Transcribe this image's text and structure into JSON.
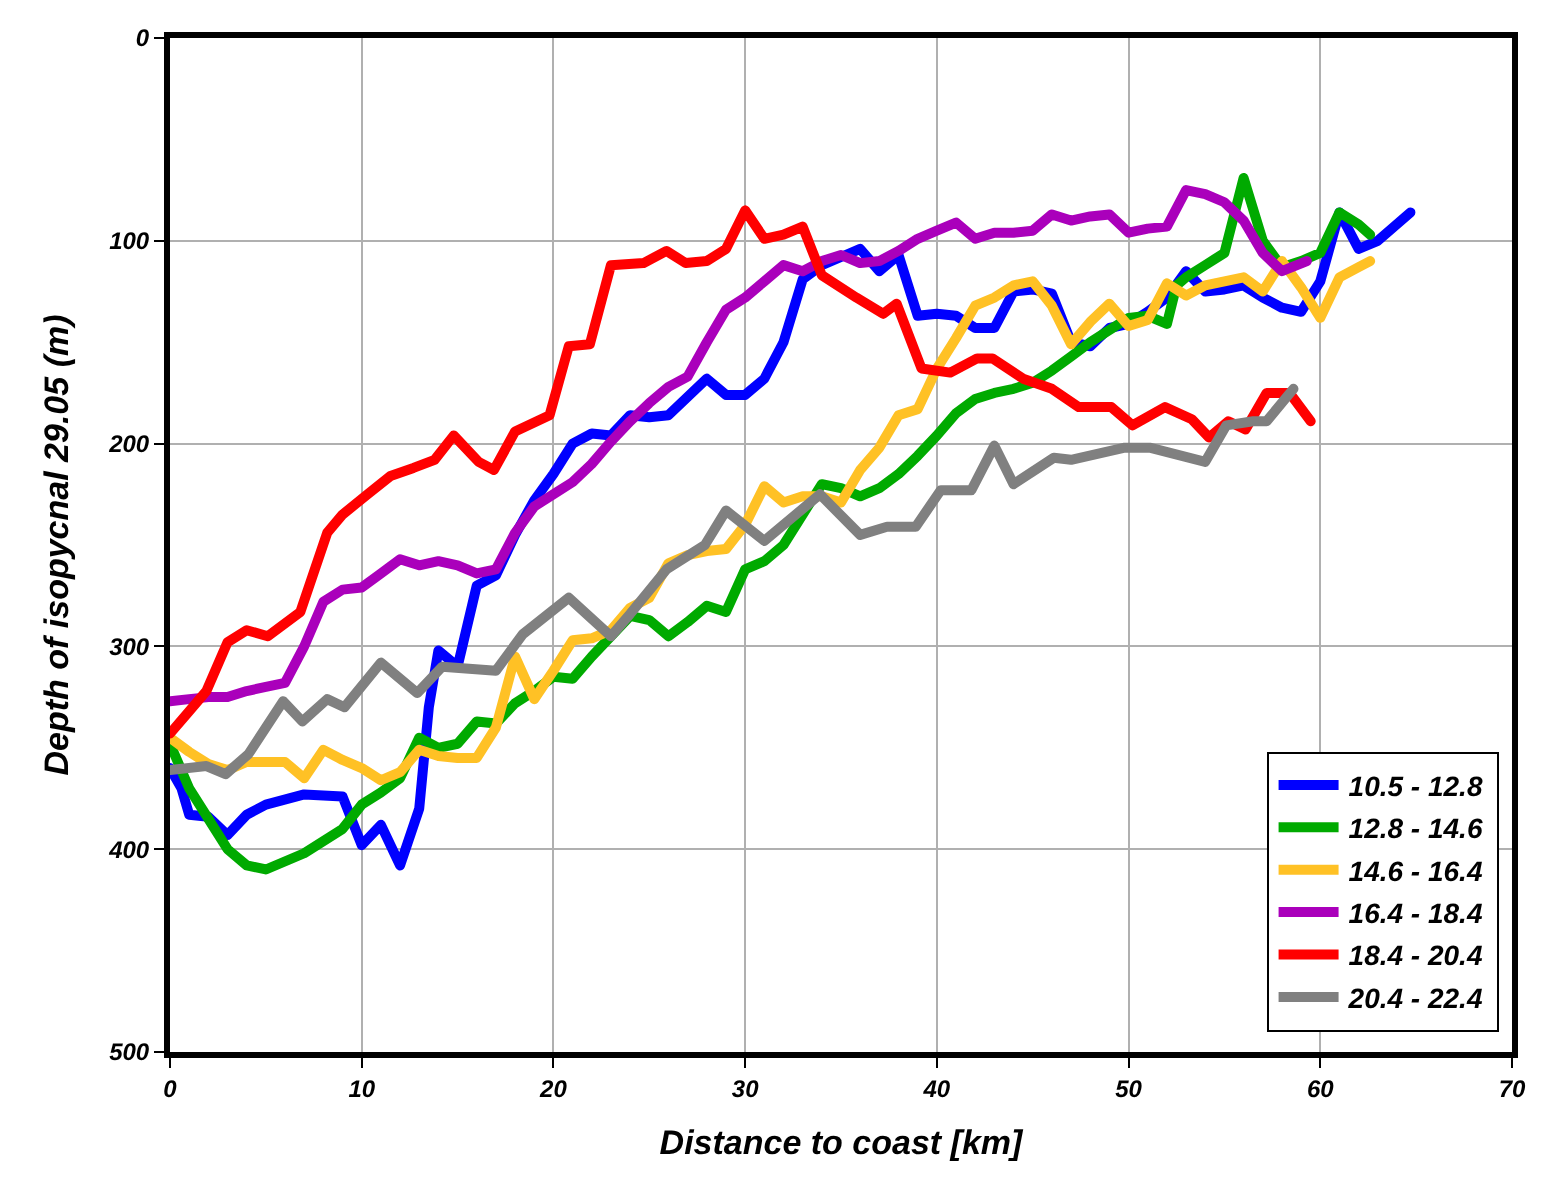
{
  "chart_data": {
    "type": "line",
    "xlabel": "Distance to coast [km]",
    "ylabel": "Depth of isopycnal 29.05 (m)",
    "xlim": [
      0,
      70
    ],
    "ylim": [
      500,
      0
    ],
    "xticks": [
      0,
      10,
      20,
      30,
      40,
      50,
      60,
      70
    ],
    "yticks": [
      0,
      100,
      200,
      300,
      400,
      500
    ],
    "grid": true,
    "legend": "bottom right",
    "marker": "none",
    "line_style": "solid",
    "series": [
      {
        "name": "10.5 - 12.8",
        "color": "#0000ff",
        "x": [
          0,
          0.6,
          1,
          2,
          3,
          4,
          5,
          7,
          9,
          10,
          11,
          12,
          13,
          13.5,
          14,
          15,
          16,
          17,
          18,
          19,
          20,
          21,
          22,
          23,
          24,
          25,
          26,
          27,
          28,
          29,
          30,
          31,
          32,
          33,
          34,
          35,
          36,
          37,
          38,
          39,
          40,
          41,
          42,
          43,
          44,
          45,
          46,
          47,
          48,
          49,
          50,
          51,
          52,
          53,
          54,
          55,
          56,
          57,
          58,
          59,
          60,
          61,
          62,
          63,
          64.7
        ],
        "values": [
          360,
          370,
          383,
          384,
          393,
          383,
          378,
          373,
          374,
          398,
          388,
          408,
          380,
          330,
          302,
          310,
          270,
          265,
          245,
          228,
          215,
          200,
          195,
          196,
          186,
          187,
          186,
          177,
          168,
          176,
          176,
          168,
          150,
          119,
          112,
          108,
          104,
          115,
          107,
          137,
          136,
          137,
          143,
          143,
          125,
          124,
          126,
          150,
          152,
          143,
          141,
          135,
          128,
          115,
          125,
          124,
          122,
          128,
          133,
          135,
          120,
          86,
          104,
          100,
          86
        ]
      },
      {
        "name": "12.8 - 14.6",
        "color": "#00aa00",
        "x": [
          0,
          1,
          2,
          3,
          4,
          5,
          7,
          9,
          10,
          11,
          12,
          13,
          14,
          15,
          16,
          17,
          18,
          19,
          20,
          21,
          22,
          23,
          24,
          25,
          26,
          27,
          28,
          29,
          30,
          31,
          32,
          33,
          34,
          35,
          36,
          37,
          38,
          39,
          40,
          41,
          42,
          43,
          44,
          45,
          46,
          47,
          48,
          49,
          50,
          51,
          52,
          52.5,
          53,
          54,
          55,
          56,
          57,
          58,
          59,
          60,
          61,
          62,
          62.6
        ],
        "values": [
          348,
          370,
          385,
          400,
          408,
          410,
          402,
          390,
          378,
          372,
          365,
          345,
          350,
          348,
          337,
          338,
          328,
          322,
          315,
          316,
          305,
          295,
          285,
          287,
          295,
          288,
          280,
          283,
          262,
          258,
          250,
          235,
          220,
          222,
          226,
          222,
          215,
          206,
          196,
          185,
          178,
          175,
          173,
          170,
          164,
          157,
          150,
          144,
          138,
          137,
          141,
          122,
          118,
          112,
          106,
          69,
          100,
          113,
          110,
          106,
          86,
          92,
          97
        ]
      },
      {
        "name": "14.6 - 16.4",
        "color": "#ffc125",
        "x": [
          0,
          1,
          2,
          3,
          4,
          5,
          6,
          7,
          8,
          9,
          10,
          11,
          12,
          13,
          14,
          15,
          16,
          17,
          18,
          19,
          20,
          21,
          22,
          23,
          24,
          25,
          26,
          27,
          28,
          29,
          30,
          31,
          32,
          33,
          34,
          35,
          36,
          37,
          38,
          39,
          40,
          41,
          42,
          43,
          44,
          45,
          46,
          47,
          48,
          49,
          50,
          51,
          52,
          53,
          54,
          55,
          56,
          57,
          58,
          59,
          60,
          61,
          62,
          62.6
        ],
        "values": [
          345,
          352,
          358,
          361,
          357,
          357,
          357,
          365,
          351,
          356,
          360,
          366,
          362,
          351,
          354,
          355,
          355,
          340,
          305,
          326,
          312,
          297,
          296,
          292,
          281,
          276,
          259,
          255,
          253,
          252,
          240,
          221,
          229,
          226,
          226,
          229,
          213,
          202,
          186,
          183,
          163,
          148,
          132,
          128,
          122,
          120,
          132,
          151,
          140,
          131,
          142,
          139,
          121,
          127,
          122,
          120,
          118,
          125,
          110,
          123,
          138,
          118,
          113,
          110
        ]
      },
      {
        "name": "16.4 - 18.4",
        "color": "#aa00bb",
        "x": [
          0,
          1,
          2,
          3,
          4,
          5,
          6,
          7,
          8,
          9,
          10,
          11,
          12,
          13,
          14,
          15,
          16,
          17,
          18,
          19,
          20,
          21,
          22,
          23,
          24,
          25,
          26,
          27,
          28,
          29,
          30,
          31,
          32,
          33,
          34,
          35,
          36,
          37,
          38,
          39,
          40,
          41,
          42,
          43,
          44,
          45,
          46,
          47,
          48,
          49,
          50,
          51,
          52,
          53,
          54,
          55,
          56,
          57,
          58,
          59.3
        ],
        "values": [
          327,
          326,
          325,
          325,
          322,
          320,
          318,
          300,
          278,
          272,
          271,
          264,
          257,
          260,
          258,
          260,
          264,
          262,
          244,
          231,
          225,
          219,
          210,
          199,
          189,
          180,
          172,
          167,
          150,
          134,
          128,
          120,
          112,
          115,
          110,
          107,
          111,
          110,
          105,
          99,
          95,
          91,
          99,
          96,
          96,
          95,
          87,
          90,
          88,
          87,
          96,
          94,
          93,
          75,
          77,
          81,
          90,
          106,
          115,
          110
        ]
      },
      {
        "name": "18.4 - 20.4",
        "color": "#ff0000",
        "x": [
          0,
          1,
          1.9,
          3,
          4,
          5.1,
          6.8,
          8.2,
          9,
          10.3,
          11.5,
          12.7,
          13.8,
          14.8,
          16.1,
          16.9,
          18,
          19.8,
          20.8,
          21.9,
          23,
          24.7,
          25.9,
          26.9,
          28,
          29,
          30,
          31,
          32,
          33,
          34,
          35.8,
          37.2,
          37.9,
          39.2,
          40.7,
          42.1,
          42.9,
          44.5,
          46,
          47.4,
          49.1,
          50.2,
          51.9,
          53.3,
          54.2,
          55.2,
          56.1,
          57.2,
          58.4,
          59.5
        ],
        "values": [
          343,
          332,
          322,
          298,
          292,
          295,
          283,
          244,
          235,
          225,
          216,
          212,
          208,
          196,
          209,
          213,
          194,
          186,
          152,
          151,
          112,
          111,
          105,
          111,
          110,
          104,
          85,
          99,
          97,
          93,
          117,
          128,
          136,
          131,
          163,
          165,
          158,
          158,
          168,
          173,
          182,
          182,
          191,
          182,
          188,
          197,
          189,
          193,
          175,
          175,
          189
        ]
      },
      {
        "name": "20.4 - 22.4",
        "color": "#808080",
        "x": [
          0,
          1.9,
          2.9,
          4.1,
          5.9,
          6.9,
          8.2,
          9.1,
          11,
          12.9,
          14.2,
          17,
          18.4,
          20.8,
          23,
          24,
          25.9,
          27.9,
          29,
          31,
          33.9,
          36,
          37.4,
          38.9,
          40.2,
          41.8,
          43,
          44,
          46.1,
          47,
          49.8,
          51.1,
          54,
          55.1,
          56.5,
          57.2,
          58.6
        ],
        "values": [
          361,
          359,
          363,
          353,
          327,
          337,
          326,
          330,
          308,
          323,
          310,
          312,
          294,
          276,
          295,
          284,
          262,
          250,
          233,
          248,
          225,
          245,
          241,
          241,
          223,
          223,
          201,
          220,
          207,
          208,
          202,
          202,
          209,
          191,
          189,
          189,
          173
        ]
      }
    ]
  }
}
